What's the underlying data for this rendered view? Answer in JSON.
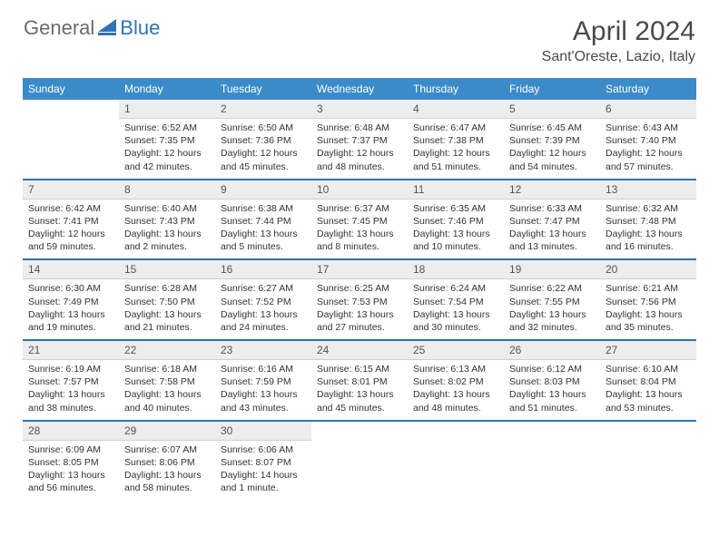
{
  "logo": {
    "general": "General",
    "blue": "Blue"
  },
  "title": "April 2024",
  "location": "Sant'Oreste, Lazio, Italy",
  "colors": {
    "header_bg": "#3b8bc9",
    "daynum_bg": "#ededed",
    "separator": "#2e74b5",
    "text": "#333333",
    "logo_gray": "#6b6b6b",
    "logo_blue": "#2e74b5"
  },
  "day_headers": [
    "Sunday",
    "Monday",
    "Tuesday",
    "Wednesday",
    "Thursday",
    "Friday",
    "Saturday"
  ],
  "weeks": [
    [
      null,
      {
        "n": "1",
        "sr": "6:52 AM",
        "ss": "7:35 PM",
        "dl": "12 hours and 42 minutes."
      },
      {
        "n": "2",
        "sr": "6:50 AM",
        "ss": "7:36 PM",
        "dl": "12 hours and 45 minutes."
      },
      {
        "n": "3",
        "sr": "6:48 AM",
        "ss": "7:37 PM",
        "dl": "12 hours and 48 minutes."
      },
      {
        "n": "4",
        "sr": "6:47 AM",
        "ss": "7:38 PM",
        "dl": "12 hours and 51 minutes."
      },
      {
        "n": "5",
        "sr": "6:45 AM",
        "ss": "7:39 PM",
        "dl": "12 hours and 54 minutes."
      },
      {
        "n": "6",
        "sr": "6:43 AM",
        "ss": "7:40 PM",
        "dl": "12 hours and 57 minutes."
      }
    ],
    [
      {
        "n": "7",
        "sr": "6:42 AM",
        "ss": "7:41 PM",
        "dl": "12 hours and 59 minutes."
      },
      {
        "n": "8",
        "sr": "6:40 AM",
        "ss": "7:43 PM",
        "dl": "13 hours and 2 minutes."
      },
      {
        "n": "9",
        "sr": "6:38 AM",
        "ss": "7:44 PM",
        "dl": "13 hours and 5 minutes."
      },
      {
        "n": "10",
        "sr": "6:37 AM",
        "ss": "7:45 PM",
        "dl": "13 hours and 8 minutes."
      },
      {
        "n": "11",
        "sr": "6:35 AM",
        "ss": "7:46 PM",
        "dl": "13 hours and 10 minutes."
      },
      {
        "n": "12",
        "sr": "6:33 AM",
        "ss": "7:47 PM",
        "dl": "13 hours and 13 minutes."
      },
      {
        "n": "13",
        "sr": "6:32 AM",
        "ss": "7:48 PM",
        "dl": "13 hours and 16 minutes."
      }
    ],
    [
      {
        "n": "14",
        "sr": "6:30 AM",
        "ss": "7:49 PM",
        "dl": "13 hours and 19 minutes."
      },
      {
        "n": "15",
        "sr": "6:28 AM",
        "ss": "7:50 PM",
        "dl": "13 hours and 21 minutes."
      },
      {
        "n": "16",
        "sr": "6:27 AM",
        "ss": "7:52 PM",
        "dl": "13 hours and 24 minutes."
      },
      {
        "n": "17",
        "sr": "6:25 AM",
        "ss": "7:53 PM",
        "dl": "13 hours and 27 minutes."
      },
      {
        "n": "18",
        "sr": "6:24 AM",
        "ss": "7:54 PM",
        "dl": "13 hours and 30 minutes."
      },
      {
        "n": "19",
        "sr": "6:22 AM",
        "ss": "7:55 PM",
        "dl": "13 hours and 32 minutes."
      },
      {
        "n": "20",
        "sr": "6:21 AM",
        "ss": "7:56 PM",
        "dl": "13 hours and 35 minutes."
      }
    ],
    [
      {
        "n": "21",
        "sr": "6:19 AM",
        "ss": "7:57 PM",
        "dl": "13 hours and 38 minutes."
      },
      {
        "n": "22",
        "sr": "6:18 AM",
        "ss": "7:58 PM",
        "dl": "13 hours and 40 minutes."
      },
      {
        "n": "23",
        "sr": "6:16 AM",
        "ss": "7:59 PM",
        "dl": "13 hours and 43 minutes."
      },
      {
        "n": "24",
        "sr": "6:15 AM",
        "ss": "8:01 PM",
        "dl": "13 hours and 45 minutes."
      },
      {
        "n": "25",
        "sr": "6:13 AM",
        "ss": "8:02 PM",
        "dl": "13 hours and 48 minutes."
      },
      {
        "n": "26",
        "sr": "6:12 AM",
        "ss": "8:03 PM",
        "dl": "13 hours and 51 minutes."
      },
      {
        "n": "27",
        "sr": "6:10 AM",
        "ss": "8:04 PM",
        "dl": "13 hours and 53 minutes."
      }
    ],
    [
      {
        "n": "28",
        "sr": "6:09 AM",
        "ss": "8:05 PM",
        "dl": "13 hours and 56 minutes."
      },
      {
        "n": "29",
        "sr": "6:07 AM",
        "ss": "8:06 PM",
        "dl": "13 hours and 58 minutes."
      },
      {
        "n": "30",
        "sr": "6:06 AM",
        "ss": "8:07 PM",
        "dl": "14 hours and 1 minute."
      },
      null,
      null,
      null,
      null
    ]
  ],
  "labels": {
    "sunrise": "Sunrise:",
    "sunset": "Sunset:",
    "daylight": "Daylight:"
  }
}
